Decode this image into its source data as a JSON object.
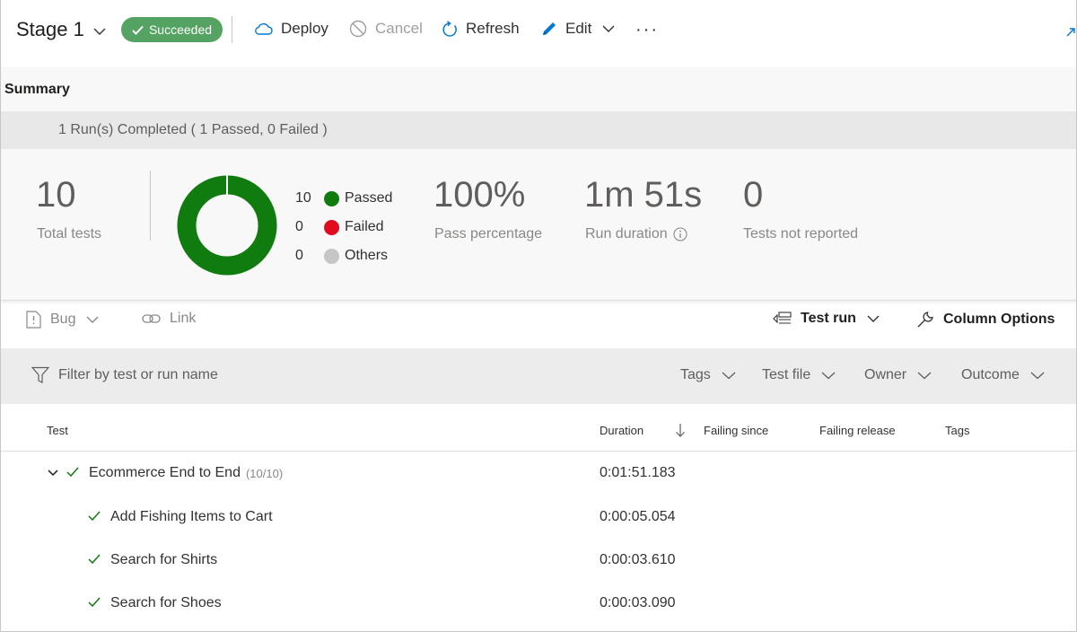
{
  "header": {
    "stage_title": "Stage 1",
    "status_badge": "Succeeded",
    "actions": {
      "deploy": "Deploy",
      "cancel": "Cancel",
      "refresh": "Refresh",
      "edit": "Edit",
      "more": "···"
    }
  },
  "summary": {
    "title": "Summary",
    "runs_completed": "1 Run(s) Completed ( 1 Passed, 0 Failed )",
    "total_tests": {
      "value": "10",
      "label": "Total tests"
    },
    "legend": [
      {
        "count": "10",
        "label": "Passed",
        "color": "#107c10"
      },
      {
        "count": "0",
        "label": "Failed",
        "color": "#e00b1c"
      },
      {
        "count": "0",
        "label": "Others",
        "color": "#c8c6c4"
      }
    ],
    "pass_percentage": {
      "value": "100%",
      "label": "Pass percentage"
    },
    "run_duration": {
      "value": "1m 51s",
      "label": "Run duration"
    },
    "not_reported": {
      "value": "0",
      "label": "Tests not reported"
    },
    "donut": {
      "passed": 10,
      "failed": 0,
      "others": 0,
      "passed_color": "#107c10"
    }
  },
  "toolbar": {
    "bug": "Bug",
    "link": "Link",
    "test_run": "Test run",
    "column_options": "Column Options"
  },
  "filter": {
    "placeholder": "Filter by test or run name",
    "dropdowns": [
      "Tags",
      "Test file",
      "Owner",
      "Outcome"
    ]
  },
  "table": {
    "columns": [
      "Test",
      "Duration",
      "Failing since",
      "Failing release",
      "Tags"
    ],
    "group": {
      "name": "Ecommerce End to End",
      "count": "(10/10)",
      "duration": "0:01:51.183"
    },
    "rows": [
      {
        "name": "Add Fishing Items to Cart",
        "duration": "0:00:05.054"
      },
      {
        "name": "Search for Shirts",
        "duration": "0:00:03.610"
      },
      {
        "name": "Search for Shoes",
        "duration": "0:00:03.090"
      }
    ]
  },
  "colors": {
    "success": "#55a362",
    "passed": "#107c10",
    "failed": "#e00b1c",
    "accent": "#0078d4"
  }
}
